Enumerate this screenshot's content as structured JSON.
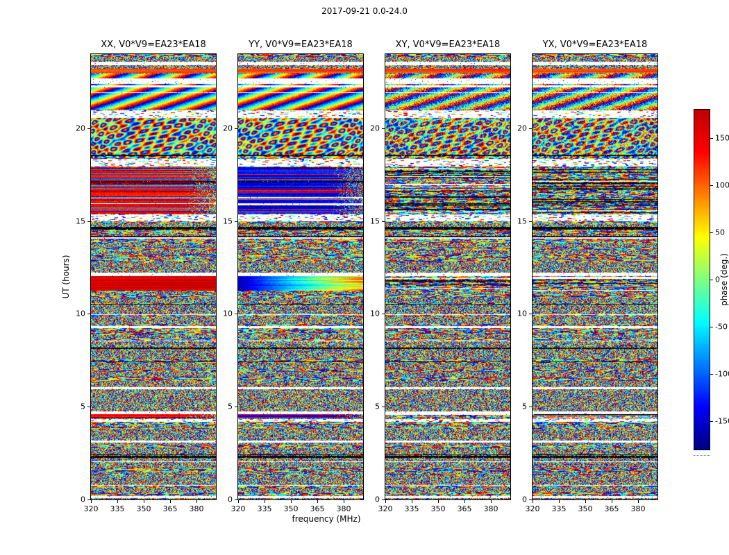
{
  "figure": {
    "title": "2017-09-21 0.0-24.0",
    "xlabel": "frequency (MHz)",
    "ylabel": "UT (hours)",
    "colorbar": {
      "label": "phase (deg.)",
      "ticks": [
        150,
        100,
        50,
        0,
        -50,
        -100,
        -150
      ],
      "vmin": -180,
      "vmax": 180
    }
  },
  "chart_data": {
    "type": "heatmap",
    "title": "2017-09-21 0.0-24.0",
    "description": "Four dynamic-spectrum panels of interferometric visibility phase (deg) versus frequency (x) and UT time (y) for baseline V0*V9=EA23*EA18, one panel per polarization product (XX, YY, XY, YX). Content is mostly random phase noise with horizontal flagged (white) and dark rows shared across panels; coherent colored bands appear in XX (warm/red) and YY (cool/blue) near UT 15.4-17.9, 11.3-12.0 and 4.4-4.6, an orange band near UT 23.1 in all panels, and fringe/moire patterns near UT 18.4-20.6 and 21.0-23.0.",
    "panels": [
      {
        "pol": "XX",
        "title": "XX, V0*V9=EA23*EA18"
      },
      {
        "pol": "YY",
        "title": "YY, V0*V9=EA23*EA18"
      },
      {
        "pol": "XY",
        "title": "XY, V0*V9=EA23*EA18"
      },
      {
        "pol": "YX",
        "title": "YX, V0*V9=EA23*EA18"
      }
    ],
    "x_axis": {
      "label": "frequency (MHz)",
      "range": [
        320,
        391
      ],
      "ticks": [
        320,
        335,
        350,
        365,
        380
      ]
    },
    "y_axis": {
      "label": "UT (hours)",
      "range": [
        0,
        24
      ],
      "ticks": [
        0,
        5,
        10,
        15,
        20
      ]
    },
    "colorbar": {
      "label": "phase (deg.)",
      "range": [
        -180,
        180
      ],
      "ticks": [
        150,
        100,
        50,
        0,
        -50,
        -100,
        -150
      ],
      "colormap": "jet"
    },
    "features": {
      "noise_seed": 42,
      "gaps": [
        {
          "ut": 23.5,
          "h": 0.16,
          "type": "white"
        },
        {
          "ut": 20.8,
          "h": 0.38,
          "type": "sparse"
        },
        {
          "ut": 18.15,
          "h": 0.42,
          "type": "sparse"
        },
        {
          "ut": 15.18,
          "h": 0.4,
          "type": "sparse"
        },
        {
          "ut": 14.62,
          "h": 0.12,
          "type": "dark"
        },
        {
          "ut": 12.1,
          "h": 0.14,
          "type": "white"
        },
        {
          "ut": 9.3,
          "h": 0.12,
          "type": "white"
        },
        {
          "ut": 6.0,
          "h": 0.08,
          "type": "white"
        },
        {
          "ut": 4.67,
          "h": 0.18,
          "type": "white"
        },
        {
          "ut": 4.25,
          "h": 0.14,
          "type": "sparse"
        },
        {
          "ut": 2.3,
          "h": 0.1,
          "type": "dark"
        }
      ],
      "coherent_bands": [
        {
          "ut": [
            23.0,
            23.22
          ],
          "styles": [
            "warm2",
            "warm2",
            "warm2",
            "warm2"
          ]
        },
        {
          "ut": [
            15.4,
            17.9
          ],
          "styles": [
            "warmmix",
            "coolmix",
            "busy",
            "busy"
          ]
        },
        {
          "ut": [
            11.25,
            12.02
          ],
          "styles": [
            "warmdark",
            "coolgrad",
            "busy",
            "busy"
          ]
        },
        {
          "ut": [
            4.36,
            4.58
          ],
          "styles": [
            "warmmix",
            "coolmix",
            "busy",
            "busy"
          ]
        }
      ],
      "moire_bands": [
        {
          "ut": [
            18.4,
            20.6
          ],
          "kind": "swirl"
        },
        {
          "ut": [
            21.0,
            22.95
          ],
          "kind": "diag"
        }
      ]
    }
  }
}
